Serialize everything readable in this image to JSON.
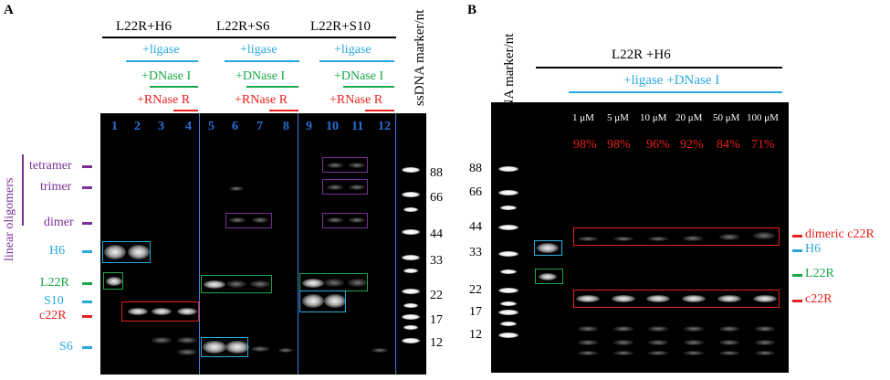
{
  "colors": {
    "blue": "#29a8e0",
    "green": "#1aa64a",
    "red": "#e8201c",
    "purple": "#7a2f96",
    "lane_blue": "#2a6fd6",
    "divider": "#4a7ad6"
  },
  "panel_a": {
    "letter": "A",
    "groups": [
      "L22R+H6",
      "L22R+S6",
      "L22R+S10"
    ],
    "ligase": "+ligase",
    "dnase": "+DNase I",
    "rnase": "+RNase R",
    "marker_label": "ssDNA marker/nt",
    "lanes": [
      "1",
      "2",
      "3",
      "4",
      "5",
      "6",
      "7",
      "8",
      "9",
      "10",
      "11",
      "12"
    ],
    "marker_sizes": [
      "88",
      "66",
      "44",
      "33",
      "22",
      "17",
      "12"
    ],
    "bracket_label": "linear oligomers",
    "oligomers": [
      "tetramer",
      "trimer",
      "dimer"
    ],
    "band_labels": [
      "H6",
      "L22R",
      "S10",
      "c22R",
      "S6"
    ]
  },
  "panel_b": {
    "letter": "B",
    "marker_label": "ssDNA marker/nt",
    "group": "L22R +H6",
    "treatment": "+ligase +DNase I",
    "concentrations": [
      "1 μM",
      "5 μM",
      "10 μM",
      "20 μM",
      "50 μM",
      "100 μM"
    ],
    "percentages": [
      "98%",
      "98%",
      "96%",
      "92%",
      "84%",
      "71%"
    ],
    "marker_sizes": [
      "88",
      "66",
      "44",
      "33",
      "22",
      "17",
      "12"
    ],
    "band_labels": [
      "dimeric c22R",
      "H6",
      "L22R",
      "c22R"
    ]
  }
}
